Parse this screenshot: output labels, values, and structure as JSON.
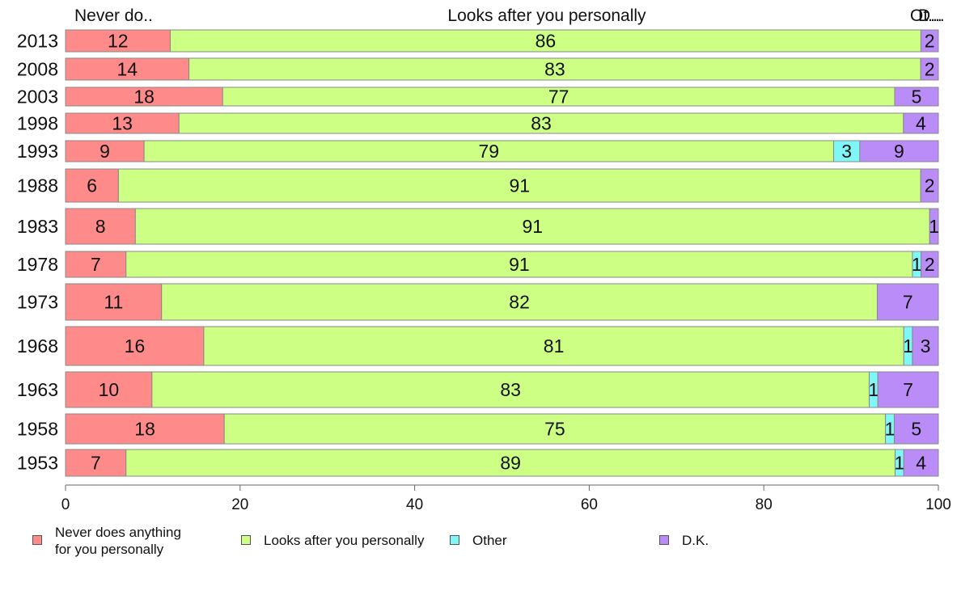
{
  "chart_data": {
    "type": "bar",
    "orientation": "horizontal",
    "stacked": true,
    "categories": [
      "2013",
      "2008",
      "2003",
      "1998",
      "1993",
      "1988",
      "1983",
      "1978",
      "1973",
      "1968",
      "1963",
      "1958",
      "1953"
    ],
    "series": [
      {
        "name": "Never does anything for you personally",
        "values": [
          12,
          14,
          18,
          13,
          9,
          6,
          8,
          7,
          11,
          16,
          10,
          18,
          7
        ],
        "color": "#ff8a8a"
      },
      {
        "name": "Looks after you personally",
        "values": [
          86,
          83,
          77,
          83,
          79,
          91,
          91,
          91,
          82,
          81,
          83,
          75,
          89
        ],
        "color": "#cdff85"
      },
      {
        "name": "Other",
        "values": [
          0,
          0,
          0,
          0,
          3,
          0,
          0,
          1,
          0,
          1,
          1,
          1,
          1
        ],
        "color": "#7ff7f7"
      },
      {
        "name": "D.K.",
        "values": [
          2,
          2,
          5,
          4,
          9,
          2,
          1,
          2,
          7,
          3,
          7,
          5,
          4
        ],
        "color": "#b98cf7"
      }
    ],
    "data_labels": [
      [
        "12",
        "86",
        "",
        "2"
      ],
      [
        "14",
        "83",
        "",
        "2"
      ],
      [
        "18",
        "77",
        "",
        "5"
      ],
      [
        "13",
        "83",
        "",
        "4"
      ],
      [
        "9",
        "79",
        "3",
        "9"
      ],
      [
        "6",
        "91",
        "",
        "2"
      ],
      [
        "8",
        "91",
        "",
        "1"
      ],
      [
        "7",
        "91",
        "1",
        "2"
      ],
      [
        "11",
        "82",
        "",
        "7"
      ],
      [
        "16",
        "81",
        "1",
        "3"
      ],
      [
        "10",
        "83",
        "1",
        "7"
      ],
      [
        "18",
        "75",
        "1",
        "5"
      ],
      [
        "7",
        "89",
        "1",
        "4"
      ]
    ],
    "column_headers": [
      "Never do..",
      "Looks after you personally",
      "Ot...",
      "D..."
    ],
    "xlim": [
      0,
      100
    ],
    "xticks": [
      0,
      20,
      40,
      60,
      80,
      100
    ],
    "legend": {
      "placement": "bottom",
      "labels": [
        "Never does anything\nfor you personally",
        "Looks after you personally",
        "Other",
        "D.K."
      ]
    }
  }
}
